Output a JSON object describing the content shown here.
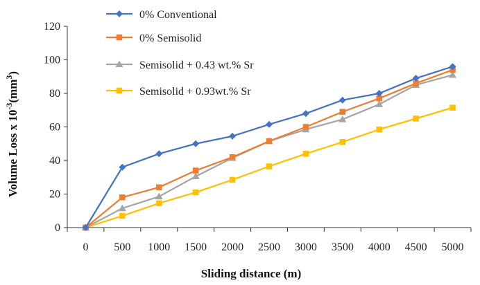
{
  "chart_data": {
    "type": "line",
    "title": "",
    "xlabel": "Sliding distance (m)",
    "ylabel": {
      "main": "Volume Loss x 10",
      "exp1": "-3",
      "unit": "(mm",
      "exp2": "3",
      "close": ")"
    },
    "x": [
      0,
      500,
      1000,
      1500,
      2000,
      2500,
      3000,
      3500,
      4000,
      4500,
      5000
    ],
    "x_tick_labels": [
      "0",
      "500",
      "1000",
      "1500",
      "2000",
      "2500",
      "3000",
      "3500",
      "4000",
      "4500",
      "5000"
    ],
    "ylim": [
      0,
      120
    ],
    "y_ticks": [
      0,
      20,
      40,
      60,
      80,
      100,
      120
    ],
    "grid": false,
    "legend_position": "top-left",
    "series": [
      {
        "name": "0% Conventional",
        "color": "#4472C4",
        "marker": "diamond",
        "values": [
          0,
          36,
          44,
          50,
          54.5,
          61.5,
          68,
          76,
          80,
          89,
          96
        ]
      },
      {
        "name": "0% Semisolid",
        "color": "#ED7D31",
        "marker": "square",
        "values": [
          0,
          18,
          24,
          34,
          42,
          51.5,
          60,
          69,
          77,
          86,
          94
        ]
      },
      {
        "name": "Semisolid + 0.43 wt.% Sr",
        "color": "#A5A5A5",
        "marker": "triangle",
        "values": [
          0,
          11.5,
          18.5,
          30.5,
          41.5,
          51.5,
          58.5,
          64.5,
          73.5,
          85,
          91
        ]
      },
      {
        "name": "Semisolid + 0.93wt.% Sr",
        "color": "#FFC000",
        "marker": "square",
        "values": [
          0,
          7,
          14.5,
          21,
          28.5,
          36.5,
          44,
          51,
          58.5,
          65,
          71.5
        ]
      }
    ]
  }
}
